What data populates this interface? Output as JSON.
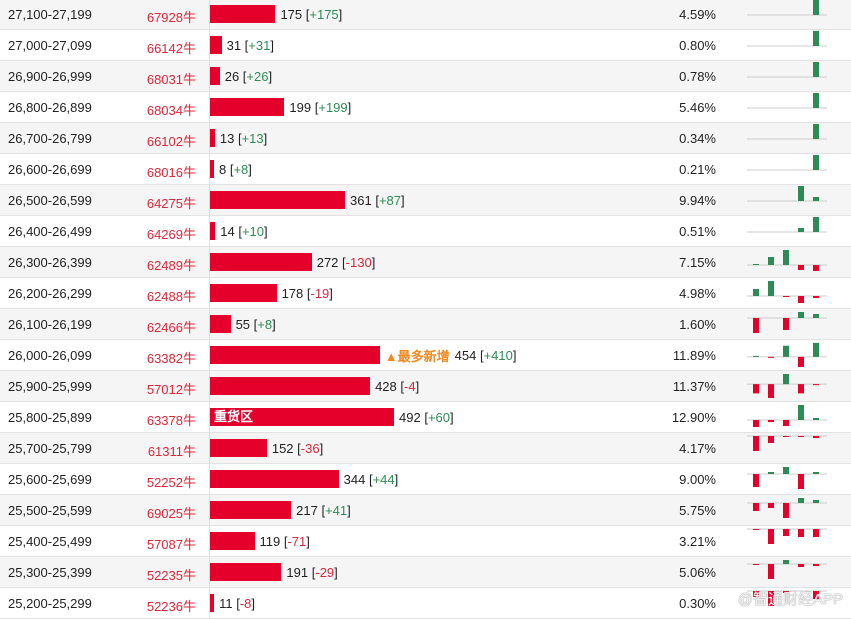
{
  "rows": [
    {
      "range": "27,100-27,199",
      "code": "67928牛",
      "qty": 175,
      "qty_label": "175",
      "chg": "+175",
      "pct": "4.59%",
      "mini": [
        0,
        0,
        0,
        0,
        15
      ]
    },
    {
      "range": "27,000-27,099",
      "code": "66142牛",
      "qty": 31,
      "qty_label": "31",
      "chg": "+31",
      "pct": "0.80%",
      "mini": [
        0,
        0,
        0,
        0,
        15
      ]
    },
    {
      "range": "26,900-26,999",
      "code": "68031牛",
      "qty": 26,
      "qty_label": "26",
      "chg": "+26",
      "pct": "0.78%",
      "mini": [
        0,
        0,
        0,
        0,
        15
      ]
    },
    {
      "range": "26,800-26,899",
      "code": "68034牛",
      "qty": 199,
      "qty_label": "199",
      "chg": "+199",
      "pct": "5.46%",
      "mini": [
        0,
        0,
        0,
        0,
        15
      ]
    },
    {
      "range": "26,700-26,799",
      "code": "66102牛",
      "qty": 13,
      "qty_label": "13",
      "chg": "+13",
      "pct": "0.34%",
      "mini": [
        0,
        0,
        0,
        0,
        15
      ]
    },
    {
      "range": "26,600-26,699",
      "code": "68016牛",
      "qty": 8,
      "qty_label": "8",
      "chg": "+8",
      "pct": "0.21%",
      "mini": [
        0,
        0,
        0,
        0,
        15
      ]
    },
    {
      "range": "26,500-26,599",
      "code": "64275牛",
      "qty": 361,
      "qty_label": "361",
      "chg": "+87",
      "pct": "9.94%",
      "mini": [
        0,
        0,
        0,
        15,
        4
      ]
    },
    {
      "range": "26,400-26,499",
      "code": "64269牛",
      "qty": 14,
      "qty_label": "14",
      "chg": "+10",
      "pct": "0.51%",
      "mini": [
        0,
        0,
        0,
        4,
        15
      ]
    },
    {
      "range": "26,300-26,399",
      "code": "62489牛",
      "qty": 272,
      "qty_label": "272",
      "chg": "-130",
      "pct": "7.15%",
      "mini": [
        1,
        8,
        15,
        -5,
        -6
      ]
    },
    {
      "range": "26,200-26,299",
      "code": "62488牛",
      "qty": 178,
      "qty_label": "178",
      "chg": "-19",
      "pct": "4.98%",
      "mini": [
        7,
        15,
        -1,
        -7,
        -2
      ]
    },
    {
      "range": "26,100-26,199",
      "code": "62466牛",
      "qty": 55,
      "qty_label": "55",
      "chg": "+8",
      "pct": "1.60%",
      "mini": [
        -15,
        0,
        -12,
        6,
        4
      ]
    },
    {
      "range": "26,000-26,099",
      "code": "63382牛",
      "qty": 454,
      "qty_label": "454",
      "chg": "+410",
      "pct": "11.89%",
      "tag": "▲最多新增",
      "mini": [
        1,
        -1,
        12,
        -11,
        15
      ]
    },
    {
      "range": "25,900-25,999",
      "code": "57012牛",
      "qty": 428,
      "qty_label": "428",
      "chg": "-4",
      "pct": "11.37%",
      "mini": [
        -10,
        -15,
        11,
        -10,
        -1
      ]
    },
    {
      "range": "25,800-25,899",
      "code": "63378牛",
      "qty": 492,
      "qty_label": "492",
      "chg": "+60",
      "pct": "12.90%",
      "bar_label": "重货区",
      "mini": [
        -7,
        -2,
        -6,
        15,
        2
      ]
    },
    {
      "range": "25,700-25,799",
      "code": "61311牛",
      "qty": 152,
      "qty_label": "152",
      "chg": "-36",
      "pct": "4.17%",
      "mini": [
        -15,
        -7,
        -1,
        -1,
        -2
      ]
    },
    {
      "range": "25,600-25,699",
      "code": "52252牛",
      "qty": 344,
      "qty_label": "344",
      "chg": "+44",
      "pct": "9.00%",
      "mini": [
        -13,
        2,
        7,
        -15,
        2
      ]
    },
    {
      "range": "25,500-25,599",
      "code": "69025牛",
      "qty": 217,
      "qty_label": "217",
      "chg": "+41",
      "pct": "5.75%",
      "mini": [
        -8,
        -5,
        -15,
        5,
        3
      ]
    },
    {
      "range": "25,400-25,499",
      "code": "57087牛",
      "qty": 119,
      "qty_label": "119",
      "chg": "-71",
      "pct": "3.21%",
      "mini": [
        -1,
        -15,
        -7,
        -8,
        -8
      ]
    },
    {
      "range": "25,300-25,399",
      "code": "52235牛",
      "qty": 191,
      "qty_label": "191",
      "chg": "-29",
      "pct": "5.06%",
      "mini": [
        -1,
        -15,
        4,
        -3,
        -2
      ]
    },
    {
      "range": "25,200-25,299",
      "code": "52236牛",
      "qty": 11,
      "qty_label": "11",
      "chg": "-8",
      "pct": "0.30%",
      "mini": [
        -6,
        -15,
        -2,
        0,
        -8
      ]
    }
  ],
  "watermark": "@智通财经APP",
  "colors": {
    "bar": "#e4002b",
    "up": "#2e8b57",
    "down": "#e4002b"
  }
}
